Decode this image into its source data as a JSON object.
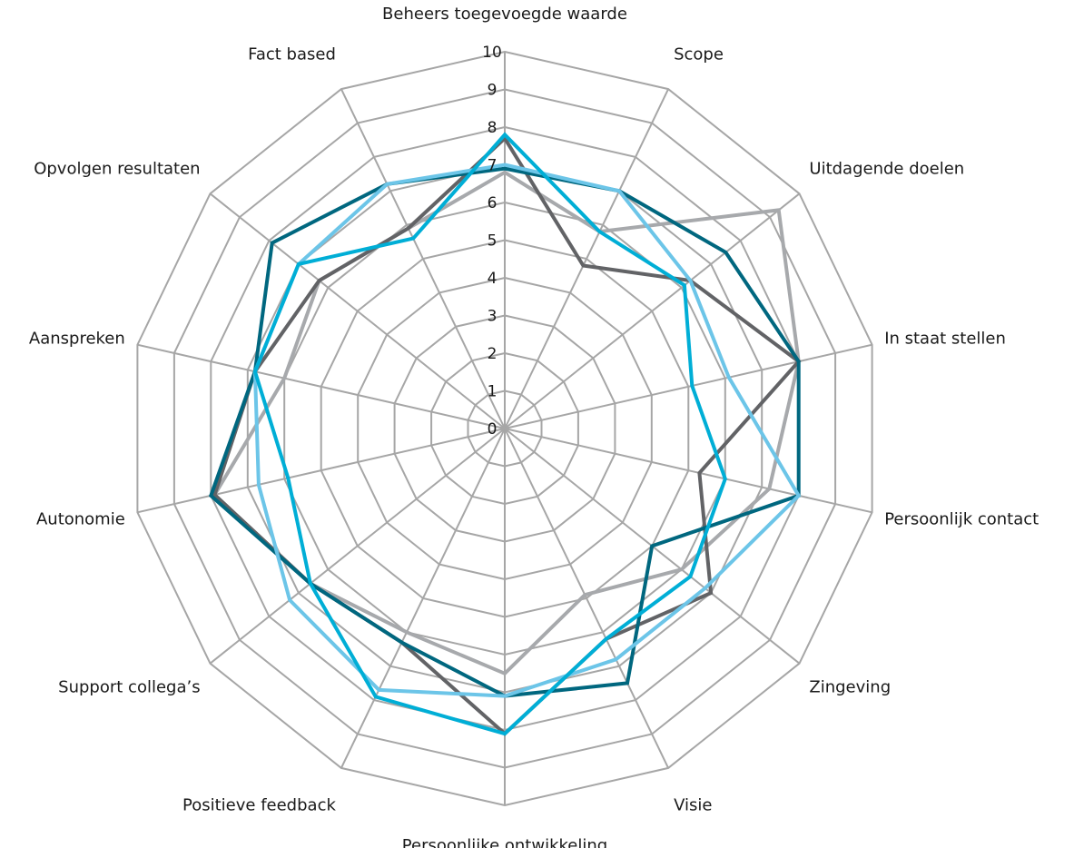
{
  "chart_data": {
    "type": "radar",
    "title": "",
    "categories": [
      "Beheers toegevoegde waarde",
      "Scope",
      "Uitdagende doelen",
      "In staat stellen",
      "Persoonlijk contact",
      "Zingeving",
      "Visie",
      "Persoonlijke ontwikkeling",
      "Positieve feedback",
      "Support collega’s",
      "Autonomie",
      "Aanspreken",
      "Opvolgen resultaten",
      "Fact based"
    ],
    "rlim": [
      0,
      10
    ],
    "ticks": [
      "0",
      "1",
      "2",
      "3",
      "4",
      "5",
      "6",
      "7",
      "8",
      "9",
      "10"
    ],
    "grid": true,
    "legend": "none",
    "series": [
      {
        "color": "#a7a9ac",
        "values": [
          6.8,
          5.8,
          9.3,
          8.0,
          7.2,
          6.0,
          4.9,
          6.5,
          6.0,
          6.6,
          7.9,
          6.0,
          6.3,
          5.9
        ]
      },
      {
        "color": "#626366",
        "values": [
          7.7,
          4.8,
          6.3,
          8.0,
          5.3,
          7.0,
          6.2,
          8.1,
          6.3,
          6.6,
          7.9,
          6.8,
          6.3,
          5.9
        ]
      },
      {
        "color": "#00677f",
        "values": [
          6.9,
          7.0,
          7.5,
          8.0,
          8.0,
          5.0,
          7.5,
          7.1,
          6.3,
          6.6,
          8.0,
          6.8,
          7.9,
          7.2
        ]
      },
      {
        "color": "#6cc5e8",
        "values": [
          7.0,
          7.0,
          6.3,
          6.1,
          8.0,
          6.8,
          6.8,
          7.1,
          7.7,
          7.3,
          6.7,
          6.8,
          7.0,
          7.2
        ]
      },
      {
        "color": "#00aed6",
        "values": [
          7.8,
          5.8,
          6.1,
          5.1,
          6.0,
          6.3,
          6.2,
          8.1,
          7.9,
          6.6,
          5.9,
          6.8,
          7.0,
          5.6
        ]
      }
    ]
  }
}
